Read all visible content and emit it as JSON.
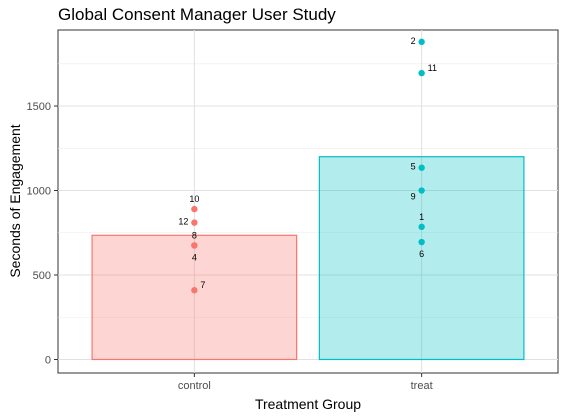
{
  "chart_data": {
    "type": "bar",
    "title": "Global Consent Manager User Study",
    "xlabel": "Treatment Group",
    "ylabel": "Seconds of Engagement",
    "categories": [
      "control",
      "treat"
    ],
    "values": [
      735,
      1200
    ],
    "ylim": [
      -80,
      1950
    ],
    "yticks": [
      0,
      500,
      1000,
      1500
    ],
    "grid": true,
    "legend": "none",
    "series_colors": {
      "control": {
        "fill": "#f8766d",
        "stroke": "#f8766d"
      },
      "treat": {
        "fill": "#00bfc4",
        "stroke": "#00bfc4"
      }
    },
    "points": [
      {
        "group": "control",
        "label": "10",
        "value": 890,
        "label_pos": "above"
      },
      {
        "group": "control",
        "label": "12",
        "value": 810,
        "label_pos": "left"
      },
      {
        "group": "control",
        "label": "8",
        "value": 675,
        "label_pos": "above"
      },
      {
        "group": "control",
        "label": "4",
        "value": 675,
        "label_pos": "below"
      },
      {
        "group": "control",
        "label": "7",
        "value": 410,
        "label_pos": "right"
      },
      {
        "group": "treat",
        "label": "2",
        "value": 1880,
        "label_pos": "left"
      },
      {
        "group": "treat",
        "label": "11",
        "value": 1695,
        "label_pos": "right"
      },
      {
        "group": "treat",
        "label": "5",
        "value": 1135,
        "label_pos": "left"
      },
      {
        "group": "treat",
        "label": "9",
        "value": 1000,
        "label_pos": "left-below"
      },
      {
        "group": "treat",
        "label": "1",
        "value": 785,
        "label_pos": "above"
      },
      {
        "group": "treat",
        "label": "6",
        "value": 695,
        "label_pos": "below"
      }
    ]
  }
}
